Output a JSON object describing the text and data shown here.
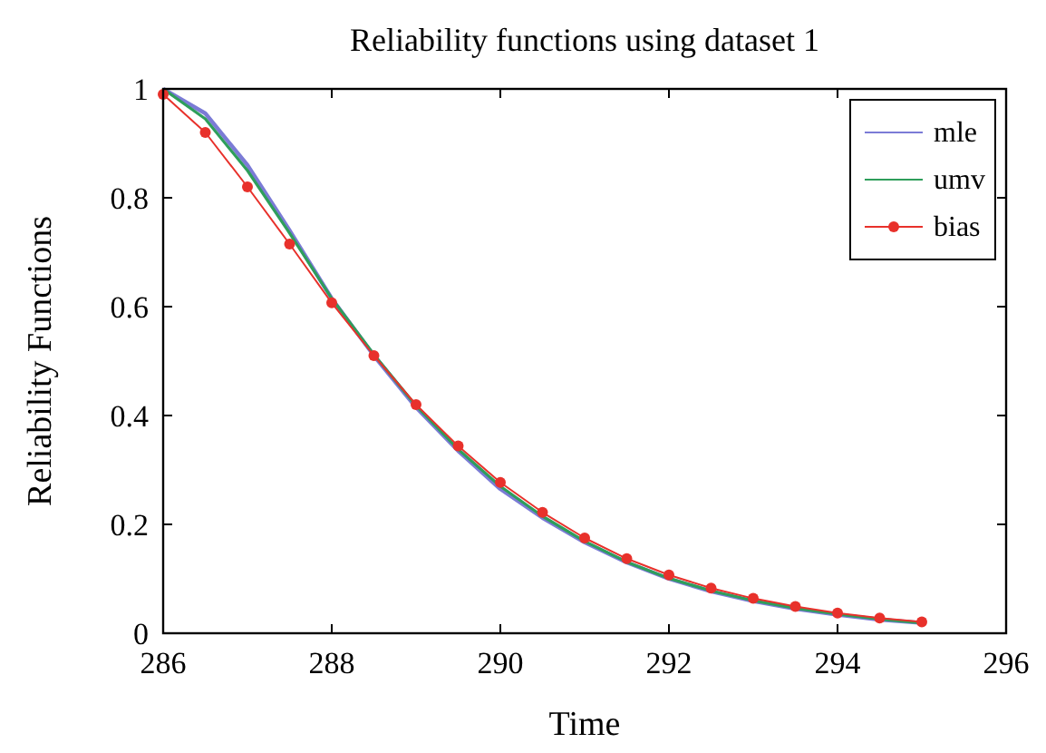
{
  "chart_data": {
    "type": "line",
    "title": "Reliability functions using dataset 1",
    "xlabel": "Time",
    "ylabel": "Reliability Functions",
    "x": [
      286,
      286.5,
      287,
      287.5,
      288,
      288.5,
      289,
      289.5,
      290,
      290.5,
      291,
      291.5,
      292,
      292.5,
      293,
      293.5,
      294,
      294.5,
      295
    ],
    "series": [
      {
        "name": "mle",
        "color": "#7b7bd6",
        "marker": "none",
        "values": [
          1.0,
          0.955,
          0.86,
          0.74,
          0.615,
          0.51,
          0.415,
          0.335,
          0.265,
          0.212,
          0.167,
          0.13,
          0.1,
          0.077,
          0.059,
          0.045,
          0.034,
          0.025,
          0.019
        ]
      },
      {
        "name": "umv",
        "color": "#2e9e5b",
        "marker": "none",
        "values": [
          1.0,
          0.945,
          0.85,
          0.735,
          0.615,
          0.512,
          0.418,
          0.338,
          0.27,
          0.215,
          0.169,
          0.131,
          0.101,
          0.078,
          0.06,
          0.046,
          0.035,
          0.026,
          0.019
        ]
      },
      {
        "name": "bias",
        "color": "#e8312b",
        "marker": "circle",
        "values": [
          0.99,
          0.92,
          0.82,
          0.715,
          0.607,
          0.51,
          0.42,
          0.344,
          0.277,
          0.222,
          0.175,
          0.137,
          0.107,
          0.083,
          0.064,
          0.049,
          0.037,
          0.028,
          0.021
        ]
      }
    ],
    "xlim": [
      286,
      296
    ],
    "xticks": [
      286,
      288,
      290,
      292,
      294,
      296
    ],
    "ylim": [
      0,
      1
    ],
    "yticks": [
      0,
      0.2,
      0.4,
      0.6,
      0.8,
      1
    ],
    "grid": false,
    "legend": "top right"
  }
}
